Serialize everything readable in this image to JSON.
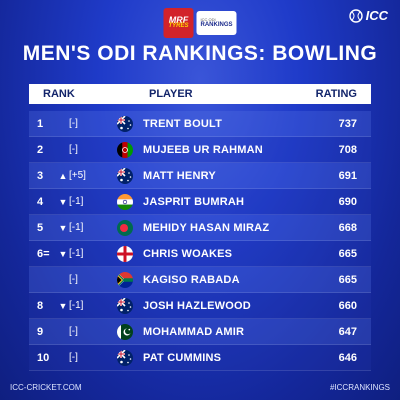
{
  "sponsor": {
    "mrf_line1": "MRF",
    "mrf_line2": "TYRES",
    "badge_line1": "ICC ODI",
    "badge_line2": "RANKINGS"
  },
  "brand": {
    "logo_text": "ICC"
  },
  "title": "MEN'S ODI RANKINGS: BOWLING",
  "headers": {
    "rank": "RANK",
    "player": "PLAYER",
    "rating": "RATING"
  },
  "rows": [
    {
      "rank": "1",
      "arrow": "",
      "move": "[-]",
      "flag": "australia-flag",
      "player": "TRENT BOULT",
      "rating": "737"
    },
    {
      "rank": "2",
      "arrow": "",
      "move": "[-]",
      "flag": "afghanistan-flag",
      "player": "MUJEEB UR RAHMAN",
      "rating": "708"
    },
    {
      "rank": "3",
      "arrow": "▲",
      "move": "[+5]",
      "flag": "australia-flag",
      "player": "MATT HENRY",
      "rating": "691"
    },
    {
      "rank": "4",
      "arrow": "▼",
      "move": "[-1]",
      "flag": "india-flag",
      "player": "JASPRIT BUMRAH",
      "rating": "690"
    },
    {
      "rank": "5",
      "arrow": "▼",
      "move": "[-1]",
      "flag": "bangladesh-flag",
      "player": "MEHIDY HASAN MIRAZ",
      "rating": "668"
    },
    {
      "rank": "6=",
      "arrow": "▼",
      "move": "[-1]",
      "flag": "england-flag",
      "player": "CHRIS WOAKES",
      "rating": "665"
    },
    {
      "rank": "",
      "arrow": "",
      "move": "[-]",
      "flag": "south-africa-flag",
      "player": "KAGISO RABADA",
      "rating": "665"
    },
    {
      "rank": "8",
      "arrow": "▼",
      "move": "[-1]",
      "flag": "australia-flag",
      "player": "JOSH HAZLEWOOD",
      "rating": "660"
    },
    {
      "rank": "9",
      "arrow": "",
      "move": "[-]",
      "flag": "pakistan-flag",
      "player": "MOHAMMAD AMIR",
      "rating": "647"
    },
    {
      "rank": "10",
      "arrow": "",
      "move": "[-]",
      "flag": "australia-flag",
      "player": "PAT CUMMINS",
      "rating": "646"
    }
  ],
  "footer": {
    "left": "ICC-CRICKET.COM",
    "right": "#ICCRANKINGS"
  },
  "colors": {
    "background": "#1f3bc9",
    "header_text": "#12246a",
    "mrf_red": "#d2232a"
  }
}
